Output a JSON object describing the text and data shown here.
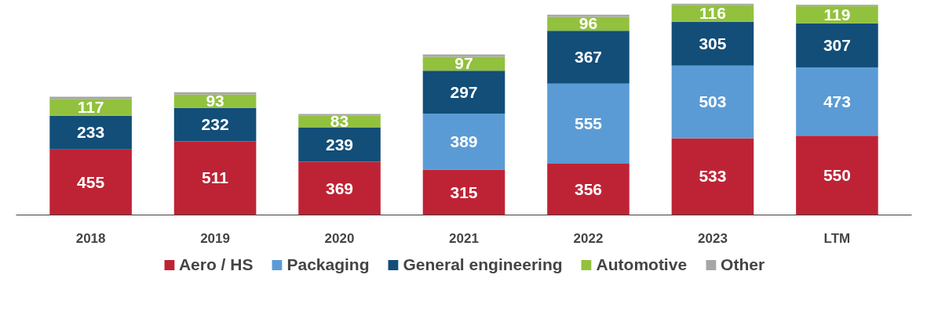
{
  "chart_data": {
    "type": "bar",
    "stacked": true,
    "categories": [
      "2018",
      "2019",
      "2020",
      "2021",
      "2022",
      "2023",
      "LTM"
    ],
    "series": [
      {
        "name": "Aero / HS",
        "color": "#be2335",
        "values": [
          455,
          511,
          369,
          315,
          356,
          533,
          550
        ],
        "value_labels": [
          "455",
          "511",
          "369",
          "315",
          "356",
          "533",
          "550"
        ]
      },
      {
        "name": "Packaging",
        "color": "#5b9bd5",
        "values": [
          null,
          null,
          null,
          389,
          555,
          503,
          473
        ],
        "value_labels": [
          null,
          null,
          null,
          "389",
          "555",
          "503",
          "473"
        ]
      },
      {
        "name": "General engineering",
        "color": "#124e78",
        "values": [
          233,
          232,
          239,
          297,
          367,
          305,
          307
        ],
        "value_labels": [
          "233",
          "232",
          "239",
          "297",
          "367",
          "305",
          "307"
        ]
      },
      {
        "name": "Automotive",
        "color": "#92c13e",
        "values": [
          117,
          93,
          83,
          97,
          96,
          116,
          119
        ],
        "value_labels": [
          "117",
          "93",
          "83",
          "97",
          "96",
          "116",
          "119"
        ]
      },
      {
        "name": "Other",
        "color": "#a6a6a6",
        "values": [
          16,
          16,
          10,
          16,
          16,
          10,
          10
        ],
        "value_labels": [
          null,
          null,
          null,
          null,
          null,
          null,
          null
        ]
      }
    ],
    "legend": "bottom"
  }
}
